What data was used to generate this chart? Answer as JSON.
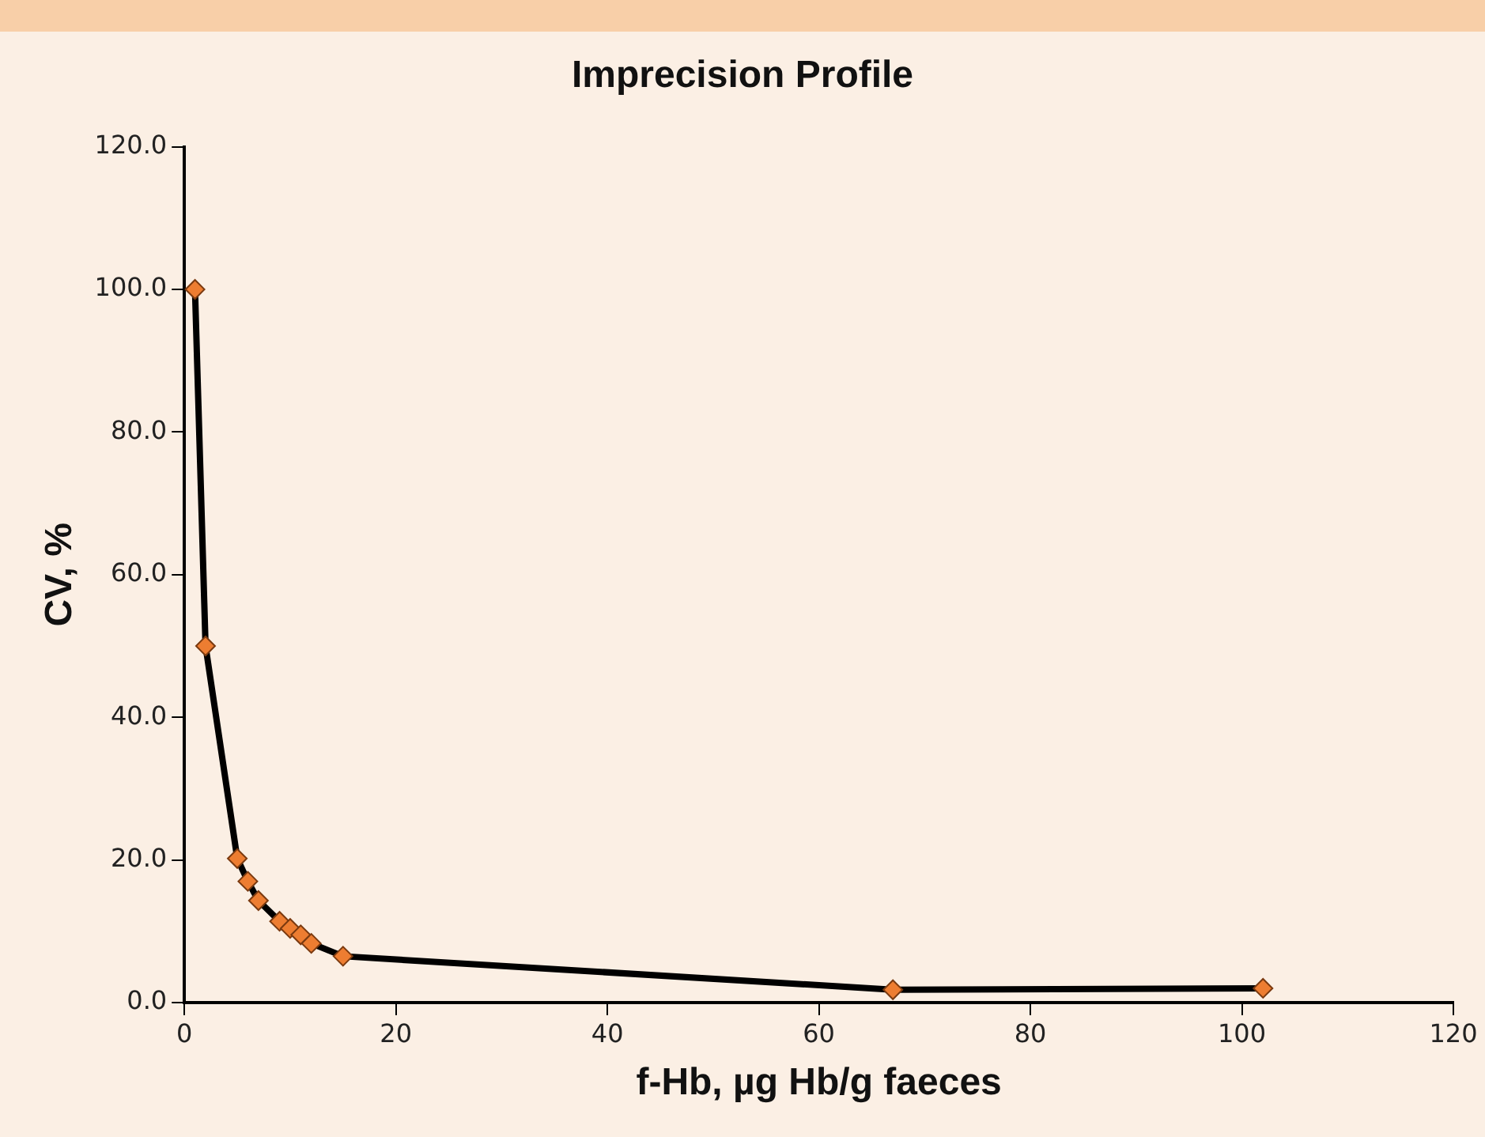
{
  "chart_data": {
    "type": "line",
    "title": "Imprecision Profile",
    "xlabel": "f-Hb, µg Hb/g faeces",
    "ylabel": "CV, %",
    "x": [
      1,
      2,
      5,
      6,
      7,
      9,
      10,
      11,
      12,
      15,
      67,
      102
    ],
    "series": [
      {
        "color": "#ed7d31",
        "values": [
          100,
          50,
          20.2,
          17,
          14.3,
          11.4,
          10.4,
          9.5,
          8.3,
          6.5,
          1.8,
          2.0
        ]
      }
    ],
    "xlim": [
      0,
      120
    ],
    "xticks": [
      0,
      20,
      40,
      60,
      80,
      100,
      120
    ],
    "ylim": [
      0,
      120
    ],
    "yticks": [
      {
        "value": 0,
        "label": "0.0"
      },
      {
        "value": 20,
        "label": "20.0"
      },
      {
        "value": 40,
        "label": "40.0"
      },
      {
        "value": 60,
        "label": "60.0"
      },
      {
        "value": 80,
        "label": "80.0"
      },
      {
        "value": 100,
        "label": "100.0"
      },
      {
        "value": 120,
        "label": "120.0"
      }
    ],
    "grid": false,
    "legend": false,
    "marker": "diamond",
    "line_style": "solid"
  }
}
